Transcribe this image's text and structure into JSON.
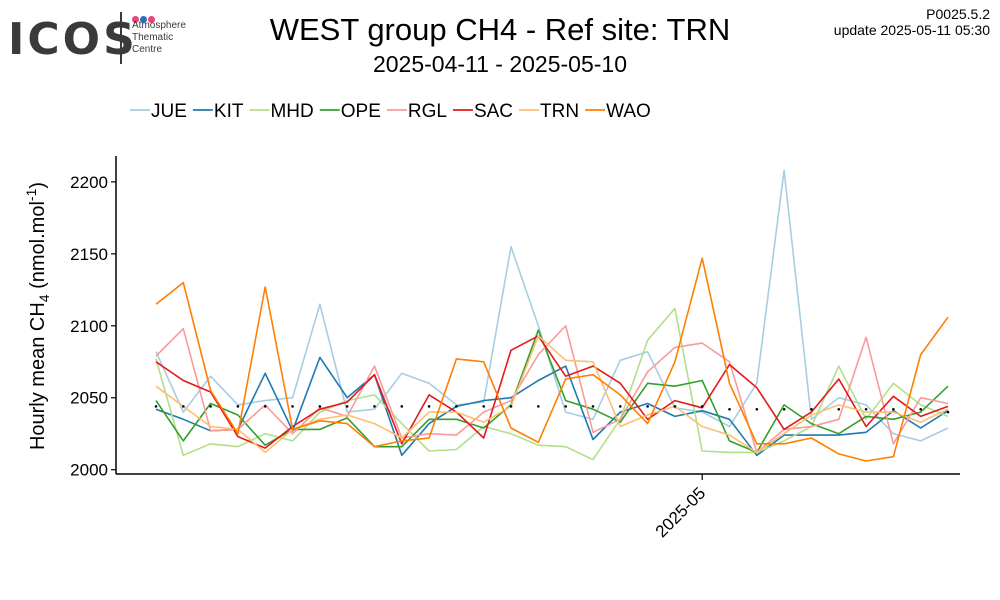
{
  "logo": {
    "word": "ICOS",
    "line1": "Atmosphere",
    "line2": "Thematic",
    "line3": "Centre",
    "dot_colors": [
      "#e8437f",
      "#2b6fc2",
      "#e8437f"
    ]
  },
  "header": {
    "title": "WEST group CH4 - Ref site: TRN",
    "subtitle": "2025-04-11 - 2025-05-10",
    "version": "P0025.5.2",
    "update": "update  2025-05-11 05:30"
  },
  "chart_data": {
    "type": "line",
    "title": "WEST group CH4 - Ref site: TRN",
    "subtitle": "2025-04-11 - 2025-05-10",
    "ylabel_main": "Hourly mean  CH",
    "ylabel_sub": "4",
    "ylabel_unit": " (nmol.mol",
    "ylabel_sup": "-1",
    "ylabel_end": ")",
    "ylim": [
      1997,
      2218
    ],
    "yticks": [
      2000,
      2050,
      2100,
      2150,
      2200
    ],
    "x_tick_label": "2025-05",
    "x_tick_index": 20,
    "legend_position": "top",
    "grid": false,
    "x": [
      "2025-04-11",
      "2025-04-12",
      "2025-04-13",
      "2025-04-14",
      "2025-04-15",
      "2025-04-16",
      "2025-04-17",
      "2025-04-18",
      "2025-04-19",
      "2025-04-20",
      "2025-04-21",
      "2025-04-22",
      "2025-04-23",
      "2025-04-24",
      "2025-04-25",
      "2025-04-26",
      "2025-04-27",
      "2025-04-28",
      "2025-04-29",
      "2025-04-30",
      "2025-05-01",
      "2025-05-02",
      "2025-05-03",
      "2025-05-04",
      "2025-05-05",
      "2025-05-06",
      "2025-05-07",
      "2025-05-08",
      "2025-05-09",
      "2025-05-10"
    ],
    "series": [
      {
        "name": "JUE",
        "color": "#a6cee3",
        "values": [
          2082,
          2040,
          2065,
          2045,
          2048,
          2050,
          2115,
          2040,
          2042,
          2067,
          2060,
          2045,
          2047,
          2155,
          2100,
          2040,
          2035,
          2076,
          2082,
          2043,
          2040,
          2030,
          2060,
          2208,
          2035,
          2050,
          2045,
          2025,
          2020,
          2029
        ]
      },
      {
        "name": "KIT",
        "color": "#1f78b4",
        "values": [
          2042,
          2035,
          2027,
          2028,
          2067,
          2027,
          2078,
          2050,
          2066,
          2010,
          2032,
          2044,
          2048,
          2050,
          2062,
          2072,
          2021,
          2040,
          2046,
          2037,
          2041,
          2035,
          2010,
          2024,
          2024,
          2024,
          2026,
          2041,
          2029,
          2041
        ]
      },
      {
        "name": "MHD",
        "color": "#b2df8a",
        "values": [
          2077,
          2010,
          2018,
          2016,
          2025,
          2020,
          2040,
          2048,
          2052,
          2032,
          2013,
          2014,
          2030,
          2025,
          2017,
          2016,
          2007,
          2035,
          2090,
          2112,
          2013,
          2012,
          2012,
          2020,
          2030,
          2072,
          2035,
          2060,
          2045,
          2037
        ]
      },
      {
        "name": "OPE",
        "color": "#33a02c",
        "values": [
          2048,
          2020,
          2046,
          2038,
          2017,
          2028,
          2028,
          2036,
          2016,
          2016,
          2035,
          2035,
          2029,
          2045,
          2097,
          2048,
          2042,
          2033,
          2060,
          2058,
          2062,
          2020,
          2012,
          2045,
          2032,
          2025,
          2037,
          2035,
          2040,
          2058
        ]
      },
      {
        "name": "RGL",
        "color": "#fb9a99",
        "values": [
          2079,
          2098,
          2027,
          2028,
          2045,
          2025,
          2043,
          2037,
          2072,
          2022,
          2025,
          2024,
          2040,
          2048,
          2080,
          2100,
          2026,
          2035,
          2068,
          2085,
          2088,
          2075,
          2012,
          2028,
          2030,
          2035,
          2092,
          2018,
          2050,
          2046
        ]
      },
      {
        "name": "SAC",
        "color": "#e31a1c",
        "values": [
          2075,
          2062,
          2054,
          2023,
          2015,
          2030,
          2042,
          2047,
          2066,
          2018,
          2052,
          2040,
          2022,
          2083,
          2093,
          2065,
          2072,
          2060,
          2035,
          2048,
          2043,
          2073,
          2057,
          2028,
          2040,
          2063,
          2030,
          2051,
          2037,
          2044
        ]
      },
      {
        "name": "TRN",
        "color": "#fdbf6f",
        "values": [
          2058,
          2044,
          2030,
          2028,
          2012,
          2028,
          2035,
          2038,
          2032,
          2022,
          2040,
          2040,
          2033,
          2044,
          2093,
          2076,
          2075,
          2030,
          2038,
          2044,
          2030,
          2024,
          2012,
          2025,
          2038,
          2045,
          2040,
          2040,
          2033,
          2042
        ]
      },
      {
        "name": "WAO",
        "color": "#ff7f00",
        "values": [
          2115,
          2130,
          2055,
          2025,
          2127,
          2028,
          2034,
          2032,
          2016,
          2020,
          2022,
          2077,
          2075,
          2029,
          2019,
          2063,
          2066,
          2052,
          2032,
          2075,
          2147,
          2060,
          2018,
          2018,
          2022,
          2011,
          2006,
          2009,
          2080,
          2106
        ]
      }
    ],
    "reference_dots": [
      2044,
      2044,
      2044,
      2044,
      2044,
      2044,
      2044,
      2044,
      2044,
      2044,
      2044,
      2044,
      2044,
      2044,
      2044,
      2044,
      2044,
      2044,
      2044,
      2044,
      2044,
      2042,
      2042,
      2042,
      2042,
      2042,
      2042,
      2042,
      2042,
      2040
    ]
  }
}
